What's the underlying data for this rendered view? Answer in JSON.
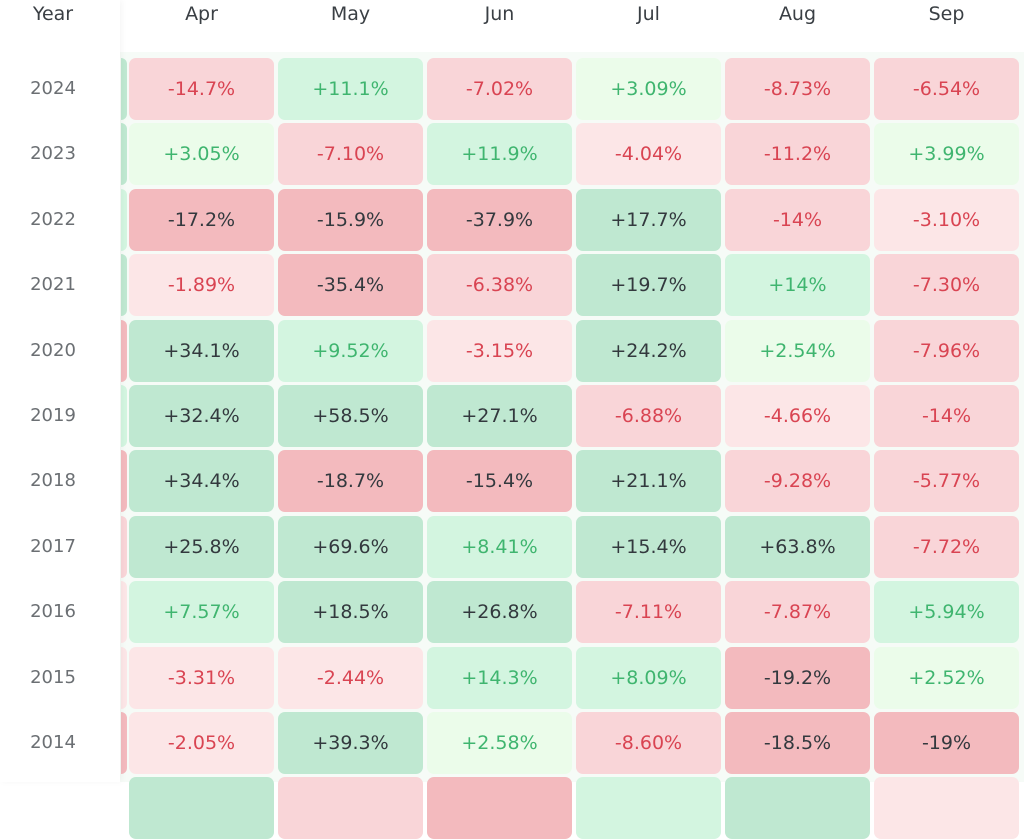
{
  "chart_data": {
    "type": "heatmap",
    "row_header": "Year",
    "columns": [
      "Apr",
      "May",
      "Jun",
      "Jul",
      "Aug",
      "Sep"
    ],
    "rows": [
      {
        "year": "2024",
        "values": [
          "-14.7%",
          "+11.1%",
          "-7.02%",
          "+3.09%",
          "-8.73%",
          "-6.54%"
        ],
        "prev_col_level": "g3"
      },
      {
        "year": "2023",
        "values": [
          "+3.05%",
          "-7.10%",
          "+11.9%",
          "-4.04%",
          "-11.2%",
          "+3.99%"
        ],
        "prev_col_level": "g3"
      },
      {
        "year": "2022",
        "values": [
          "-17.2%",
          "-15.9%",
          "-37.9%",
          "+17.7%",
          "-14%",
          "-3.10%"
        ],
        "prev_col_level": "g2"
      },
      {
        "year": "2021",
        "values": [
          "-1.89%",
          "-35.4%",
          "-6.38%",
          "+19.7%",
          "+14%",
          "-7.30%"
        ],
        "prev_col_level": "g3"
      },
      {
        "year": "2020",
        "values": [
          "+34.1%",
          "+9.52%",
          "-3.15%",
          "+24.2%",
          "+2.54%",
          "-7.96%"
        ],
        "prev_col_level": "r3"
      },
      {
        "year": "2019",
        "values": [
          "+32.4%",
          "+58.5%",
          "+27.1%",
          "-6.88%",
          "-4.66%",
          "-14%"
        ],
        "prev_col_level": "g2"
      },
      {
        "year": "2018",
        "values": [
          "+34.4%",
          "-18.7%",
          "-15.4%",
          "+21.1%",
          "-9.28%",
          "-5.77%"
        ],
        "prev_col_level": "r3"
      },
      {
        "year": "2017",
        "values": [
          "+25.8%",
          "+69.6%",
          "+8.41%",
          "+15.4%",
          "+63.8%",
          "-7.72%"
        ],
        "prev_col_level": "r2"
      },
      {
        "year": "2016",
        "values": [
          "+7.57%",
          "+18.5%",
          "+26.8%",
          "-7.11%",
          "-7.87%",
          "+5.94%"
        ],
        "prev_col_level": "r1"
      },
      {
        "year": "2015",
        "values": [
          "-3.31%",
          "-2.44%",
          "+14.3%",
          "+8.09%",
          "-19.2%",
          "+2.52%"
        ],
        "prev_col_level": "r1"
      },
      {
        "year": "2014",
        "values": [
          "-2.05%",
          "+39.3%",
          "+2.58%",
          "-8.60%",
          "-18.5%",
          "-19%"
        ],
        "prev_col_level": "r3"
      }
    ],
    "partial_next_row_levels": [
      "g3",
      "r2",
      "r3",
      "g2",
      "g3",
      "r1"
    ],
    "colors": {
      "g1": "#ebfcea",
      "g2": "#d3f5e0",
      "g3": "#bfe8d1",
      "r1": "#fce6e7",
      "r2": "#f9d5d8",
      "r3": "#f3babe",
      "text_pos": "#3fb56f",
      "text_neg": "#d94452",
      "text_strong": "#33393e"
    }
  }
}
